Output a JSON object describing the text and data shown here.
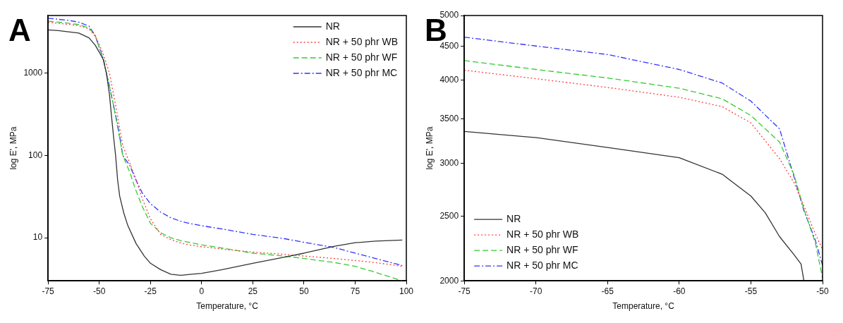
{
  "chart_data": [
    {
      "type": "line",
      "title": "A",
      "xlabel": "Temperature, °C",
      "ylabel": "log E', MPa",
      "log": "y",
      "xlim": [
        -75,
        100
      ],
      "xticks": [
        -75,
        -50,
        -25,
        0,
        25,
        50,
        75,
        100
      ],
      "ylim": [
        3,
        5000
      ],
      "yticks": [
        10,
        100,
        1000
      ],
      "legend": "top right",
      "series": [
        {
          "name": "NR",
          "color": "#333333",
          "line_style": "solid",
          "x": [
            -75,
            -70,
            -65,
            -60,
            -55,
            -52,
            -50,
            -48,
            -46.5,
            -45,
            -44,
            -43,
            -42,
            -41,
            -40,
            -38,
            -36,
            -32,
            -28,
            -25,
            -20,
            -15,
            -10,
            -5,
            0,
            10,
            25,
            40,
            50,
            65,
            75,
            85,
            98
          ],
          "values": [
            3350,
            3280,
            3170,
            3060,
            2680,
            2190,
            1800,
            1450,
            1000,
            550,
            300,
            170,
            100,
            50,
            32,
            20,
            14,
            8.5,
            6,
            4.9,
            4.1,
            3.6,
            3.5,
            3.6,
            3.7,
            4.1,
            4.9,
            5.8,
            6.5,
            7.9,
            8.7,
            9.1,
            9.4
          ]
        },
        {
          "name": "NR + 50 phr WB",
          "color": "#ff4040",
          "line_style": "dotted",
          "x": [
            -75,
            -70,
            -65,
            -60,
            -55,
            -52,
            -50,
            -48,
            -46.5,
            -45,
            -43,
            -41,
            -38.5,
            -35,
            -32.5,
            -29,
            -25,
            -20,
            -15,
            -10,
            -5,
            0,
            10,
            25,
            40,
            50,
            65,
            75,
            85,
            98
          ],
          "values": [
            4140,
            4020,
            3900,
            3770,
            3450,
            2810,
            2230,
            1700,
            1300,
            1000,
            550,
            300,
            130,
            80,
            55,
            30,
            17,
            11,
            9.5,
            8.6,
            8.1,
            7.8,
            7.3,
            6.7,
            6.3,
            6,
            5.6,
            5.3,
            5,
            4.5
          ]
        },
        {
          "name": "NR + 50 phr WF",
          "color": "#33cc33",
          "line_style": "dashed",
          "x": [
            -75,
            -70,
            -65,
            -60,
            -55,
            -52,
            -50,
            -48,
            -46.5,
            -45,
            -43,
            -41,
            -38.5,
            -35,
            -32.5,
            -29,
            -25,
            -20,
            -15,
            -10,
            -5,
            0,
            10,
            25,
            40,
            50,
            65,
            75,
            85,
            98
          ],
          "values": [
            4280,
            4150,
            4030,
            3890,
            3540,
            2890,
            2050,
            1500,
            1000,
            700,
            400,
            220,
            100,
            62,
            40,
            24,
            15,
            11.5,
            10,
            9.2,
            8.7,
            8.2,
            7.5,
            6.5,
            6,
            5.6,
            5,
            4.5,
            3.8,
            3.0
          ]
        },
        {
          "name": "NR + 50 phr MC",
          "color": "#3333ff",
          "line_style": "dashdot",
          "x": [
            -75,
            -70,
            -65,
            -60,
            -55,
            -52,
            -50,
            -48,
            -46.5,
            -45,
            -43,
            -41,
            -38.5,
            -35,
            -32.5,
            -29,
            -25,
            -20,
            -15,
            -10,
            -5,
            0,
            10,
            25,
            40,
            50,
            65,
            75,
            85,
            98
          ],
          "values": [
            4640,
            4500,
            4370,
            4150,
            3720,
            2870,
            2050,
            1500,
            1000,
            700,
            400,
            240,
            100,
            75,
            53,
            35,
            26,
            20.5,
            17.5,
            15.8,
            14.8,
            14,
            12.8,
            11,
            9.8,
            8.8,
            7.6,
            6.5,
            5.6,
            4.6
          ]
        }
      ]
    },
    {
      "type": "line",
      "title": "B",
      "xlabel": "Temperature, °C",
      "ylabel": "log E', MPa",
      "log": "y",
      "xlim": [
        -75,
        -50
      ],
      "xticks": [
        -75,
        -70,
        -65,
        -60,
        -55,
        -50
      ],
      "ylim": [
        2000,
        5000
      ],
      "yticks": [
        2000,
        2500,
        3000,
        3500,
        4000,
        4500,
        5000
      ],
      "legend": "bottom left",
      "series": [
        {
          "name": "NR",
          "color": "#333333",
          "line_style": "solid",
          "x": [
            -75,
            -70,
            -65,
            -60,
            -57,
            -55,
            -54,
            -53,
            -52,
            -51.5,
            -51.3
          ],
          "values": [
            3350,
            3280,
            3170,
            3060,
            2890,
            2680,
            2530,
            2330,
            2190,
            2120,
            2000
          ]
        },
        {
          "name": "NR + 50 phr WB",
          "color": "#ff4040",
          "line_style": "dotted",
          "x": [
            -75,
            -70,
            -65,
            -60,
            -57,
            -55,
            -53,
            -52,
            -51.3,
            -50.5,
            -50
          ],
          "values": [
            4140,
            4020,
            3900,
            3770,
            3650,
            3450,
            3050,
            2810,
            2590,
            2350,
            2230
          ]
        },
        {
          "name": "NR + 50 phr WF",
          "color": "#33cc33",
          "line_style": "dashed",
          "x": [
            -75,
            -70,
            -65,
            -60,
            -57,
            -55,
            -53,
            -52,
            -51.3,
            -50.5,
            -50
          ],
          "values": [
            4280,
            4150,
            4030,
            3890,
            3750,
            3540,
            3230,
            2890,
            2560,
            2280,
            2020
          ]
        },
        {
          "name": "NR + 50 phr MC",
          "color": "#3333ff",
          "line_style": "dashdot",
          "x": [
            -75,
            -70,
            -65,
            -60,
            -57,
            -55,
            -53,
            -52,
            -51.3,
            -50.5,
            -50
          ],
          "values": [
            4640,
            4500,
            4370,
            4150,
            3960,
            3720,
            3380,
            2870,
            2550,
            2300,
            2110
          ]
        }
      ]
    }
  ]
}
